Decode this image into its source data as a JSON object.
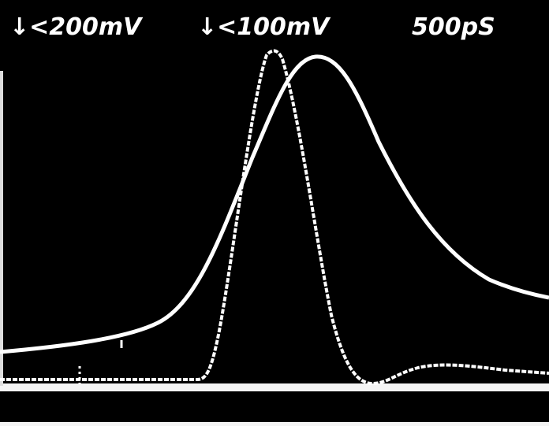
{
  "labels": {
    "channel_1": "↓<200mV",
    "channel_2": "↓<100mV",
    "timebase": "500pS"
  }
}
